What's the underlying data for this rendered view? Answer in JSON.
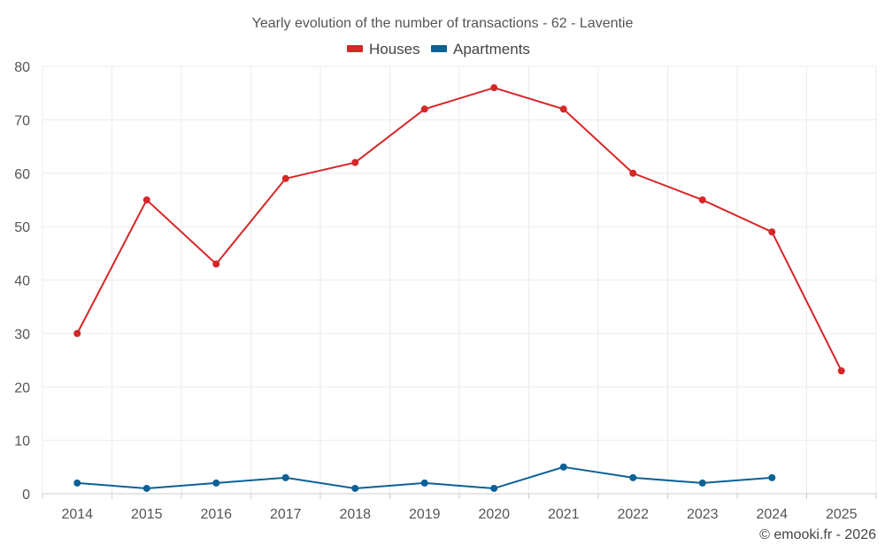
{
  "chart_data": {
    "type": "line",
    "title": "Yearly evolution of the number of transactions - 62 - Laventie",
    "xlabel": "",
    "ylabel": "",
    "categories": [
      "2014",
      "2015",
      "2016",
      "2017",
      "2018",
      "2019",
      "2020",
      "2021",
      "2022",
      "2023",
      "2024",
      "2025"
    ],
    "ylim": [
      0,
      80
    ],
    "yticks": [
      0,
      10,
      20,
      30,
      40,
      50,
      60,
      70,
      80
    ],
    "grid": true,
    "legend_position": "top-center",
    "series": [
      {
        "name": "Houses",
        "color": "#d62728",
        "values": [
          30,
          55,
          43,
          59,
          62,
          72,
          76,
          72,
          60,
          55,
          49,
          23
        ]
      },
      {
        "name": "Apartments",
        "color": "#0b6196",
        "values": [
          2,
          1,
          2,
          3,
          1,
          2,
          1,
          5,
          3,
          2,
          3,
          null
        ]
      }
    ]
  },
  "credit": "© emooki.fr - 2026"
}
